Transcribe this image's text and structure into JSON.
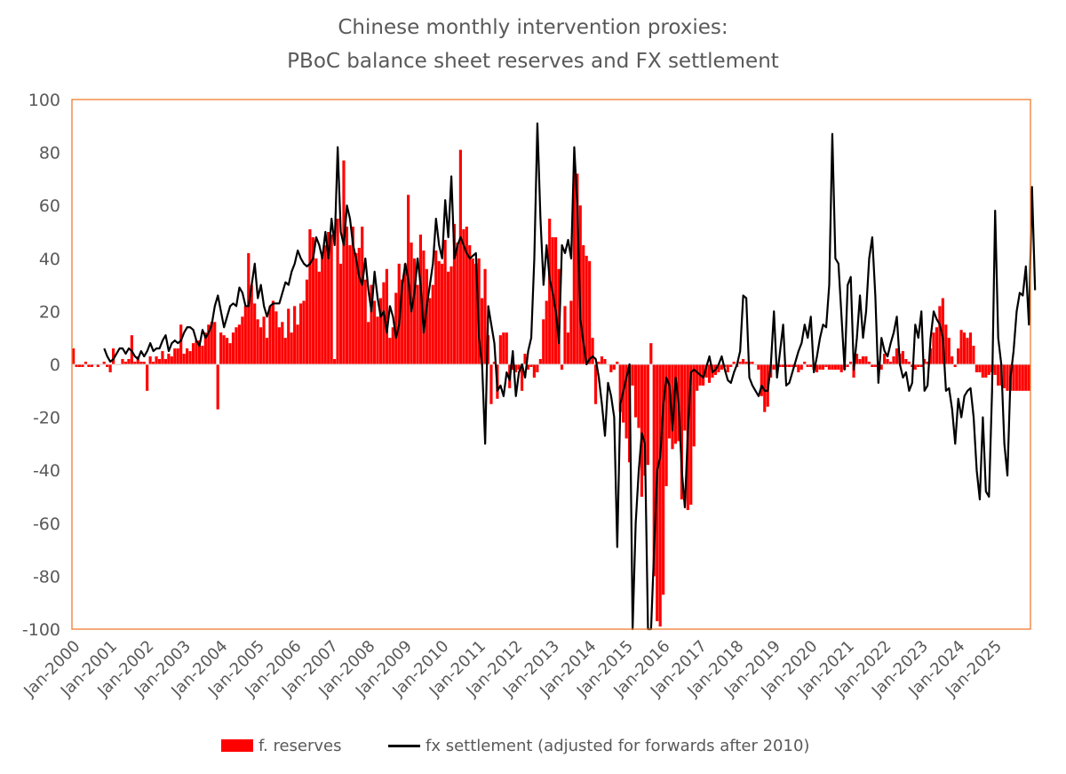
{
  "chart_data": {
    "type": "bar+line",
    "title": [
      "Chinese monthly intervention proxies:",
      "PBoC balance sheet reserves and FX settlement"
    ],
    "xlabel": "",
    "ylabel": "",
    "ylim": [
      -100,
      100
    ],
    "yticks": [
      100,
      80,
      60,
      40,
      20,
      0,
      -20,
      -40,
      -60,
      -80,
      -100
    ],
    "xlim_months": [
      0,
      312
    ],
    "x_tick_labels": [
      "Jan-2000",
      "Jan-2001",
      "Jan-2002",
      "Jan-2003",
      "Jan-2004",
      "Jan-2005",
      "Jan-2006",
      "Jan-2007",
      "Jan-2008",
      "Jan-2009",
      "Jan-2010",
      "Jan-2011",
      "Jan-2012",
      "Jan-2013",
      "Jan-2014",
      "Jan-2015",
      "Jan-2016",
      "Jan-2017",
      "Jan-2018",
      "Jan-2019",
      "Jan-2020",
      "Jan-2021",
      "Jan-2022",
      "Jan-2023",
      "Jan-2024",
      "Jan-2025"
    ],
    "colors": {
      "bars": "#ff0000",
      "line": "#000000",
      "frame": "#ed7d31",
      "text": "#595959"
    },
    "series": [
      {
        "name": "f. reserves",
        "kind": "bar",
        "description": "Monthly values starting Jan-2000, one per month (approx. read from chart)",
        "values": [
          6,
          -1,
          -1,
          -1,
          1,
          -1,
          -1,
          0,
          -1,
          0,
          1,
          -1,
          -3,
          6,
          0,
          0,
          2,
          1,
          2,
          11,
          1,
          3,
          1,
          1,
          -10,
          3,
          1,
          3,
          2,
          5,
          2,
          4,
          3,
          6,
          6,
          15,
          4,
          6,
          5,
          8,
          9,
          9,
          7,
          12,
          15,
          16,
          16,
          -17,
          12,
          11,
          10,
          8,
          12,
          14,
          15,
          18,
          22,
          42,
          30,
          23,
          17,
          14,
          18,
          10,
          22,
          24,
          20,
          14,
          16,
          10,
          21,
          12,
          22,
          15,
          23,
          24,
          32,
          51,
          48,
          40,
          35,
          42,
          45,
          50,
          49,
          2,
          55,
          38,
          77,
          52,
          45,
          52,
          42,
          44,
          52,
          32,
          16,
          30,
          24,
          18,
          25,
          31,
          36,
          10,
          14,
          27,
          38,
          32,
          38,
          64,
          46,
          40,
          30,
          49,
          43,
          36,
          25,
          30,
          43,
          39,
          38,
          47,
          35,
          37,
          53,
          46,
          81,
          51,
          52,
          45,
          40,
          38,
          40,
          25,
          36,
          11,
          -15,
          1,
          -13,
          11,
          12,
          12,
          -9,
          -2,
          -3,
          -2,
          -10,
          4,
          -2,
          -1,
          -5,
          -3,
          2,
          17,
          24,
          55,
          48,
          48,
          36,
          -2,
          22,
          12,
          24,
          73,
          72,
          60,
          45,
          41,
          39,
          10,
          -15,
          1,
          3,
          2,
          0,
          -3,
          -2,
          1,
          -18,
          -22,
          -28,
          -37,
          -8,
          -20,
          -24,
          -50,
          -42,
          -38,
          8,
          -80,
          -97,
          -99,
          -87,
          -46,
          -28,
          -32,
          -30,
          -29,
          -51,
          -25,
          -55,
          -53,
          -31,
          -10,
          -8,
          -8,
          -5,
          -7,
          -5,
          -4,
          -3,
          -2,
          -1,
          -3,
          -1,
          1,
          -1,
          1,
          2,
          1,
          1,
          1,
          0,
          -2,
          -12,
          -18,
          -16,
          -5,
          -2,
          -1,
          -1,
          -1,
          -1,
          -1,
          -1,
          -1,
          -3,
          -2,
          1,
          -1,
          -1,
          -2,
          -3,
          -2,
          -2,
          -1,
          -2,
          -2,
          -2,
          -2,
          -3,
          -2,
          -1,
          1,
          -5,
          4,
          2,
          3,
          3,
          1,
          -1,
          -1,
          1,
          -2,
          4,
          2,
          1,
          3,
          6,
          4,
          5,
          2,
          1,
          -1,
          -2,
          -1,
          -1,
          2,
          1,
          6,
          12,
          14,
          22,
          25,
          15,
          10,
          3,
          -1,
          6,
          13,
          12,
          10,
          12,
          7,
          -3,
          -3,
          -5,
          -5,
          -4,
          -3,
          -4,
          -8,
          -8,
          -9,
          -10,
          -10,
          -10,
          -10,
          -10,
          -10,
          -10,
          -10
        ]
      },
      {
        "name": "fx settlement (adjusted for forwards after 2010)",
        "kind": "line",
        "description": "Monthly values starting Oct-2000 (approx. read from chart)",
        "start_month_index": 10,
        "values": [
          6,
          3,
          1,
          2,
          4,
          6,
          6,
          4,
          6,
          5,
          3,
          2,
          5,
          3,
          5,
          8,
          5,
          6,
          6,
          9,
          11,
          5,
          8,
          9,
          8,
          9,
          12,
          14,
          14,
          13,
          9,
          7,
          13,
          10,
          12,
          15,
          22,
          26,
          20,
          14,
          18,
          22,
          23,
          22,
          29,
          27,
          22,
          22,
          30,
          38,
          25,
          30,
          22,
          18,
          22,
          23,
          23,
          23,
          27,
          31,
          30,
          35,
          38,
          43,
          40,
          38,
          37,
          38,
          40,
          48,
          45,
          40,
          50,
          40,
          55,
          45,
          82,
          50,
          45,
          60,
          55,
          45,
          40,
          33,
          30,
          40,
          28,
          20,
          35,
          25,
          18,
          20,
          12,
          22,
          18,
          10,
          15,
          30,
          38,
          32,
          20,
          27,
          40,
          30,
          12,
          22,
          30,
          38,
          55,
          45,
          40,
          62,
          48,
          71,
          40,
          45,
          48,
          45,
          42,
          40,
          41,
          42,
          10,
          0,
          -30,
          22,
          15,
          8,
          -10,
          -8,
          -12,
          -3,
          -6,
          5,
          -12,
          -3,
          0,
          -5,
          5,
          10,
          40,
          91,
          55,
          30,
          45,
          32,
          27,
          20,
          8,
          45,
          42,
          47,
          40,
          82,
          60,
          17,
          8,
          0,
          2,
          3,
          2,
          -5,
          -15,
          -27,
          -7,
          -12,
          -20,
          -69,
          -15,
          -10,
          -5,
          0,
          -100,
          -60,
          -40,
          -26,
          -30,
          -100,
          -100,
          -70,
          -40,
          -35,
          -15,
          -5,
          -8,
          -25,
          -5,
          -15,
          -40,
          -54,
          -25,
          -3,
          -2,
          -3,
          -4,
          -5,
          -1,
          3,
          -3,
          -2,
          0,
          3,
          -2,
          -6,
          -7,
          -3,
          0,
          5,
          26,
          25,
          -5,
          -8,
          -10,
          -12,
          -8,
          -10,
          -10,
          0,
          20,
          -5,
          5,
          15,
          -8,
          -7,
          -3,
          1,
          5,
          8,
          15,
          10,
          18,
          -3,
          3,
          10,
          15,
          14,
          30,
          87,
          40,
          38,
          18,
          -2,
          30,
          33,
          -2,
          10,
          26,
          10,
          20,
          40,
          48,
          26,
          -7,
          10,
          5,
          3,
          8,
          12,
          18,
          0,
          -5,
          -3,
          -10,
          -7,
          15,
          10,
          20,
          -10,
          -8,
          10,
          20,
          17,
          15,
          10,
          -10,
          -9,
          -17,
          -30,
          -13,
          -20,
          -12,
          -10,
          -9,
          -20,
          -40,
          -51,
          -20,
          -48,
          -50,
          -10,
          58,
          10,
          0,
          -30,
          -42,
          -5,
          5,
          20,
          27,
          26,
          37,
          15,
          67,
          28
        ]
      }
    ]
  },
  "legend": {
    "bars_label": "f. reserves",
    "line_label": "fx settlement (adjusted for forwards after 2010)"
  }
}
